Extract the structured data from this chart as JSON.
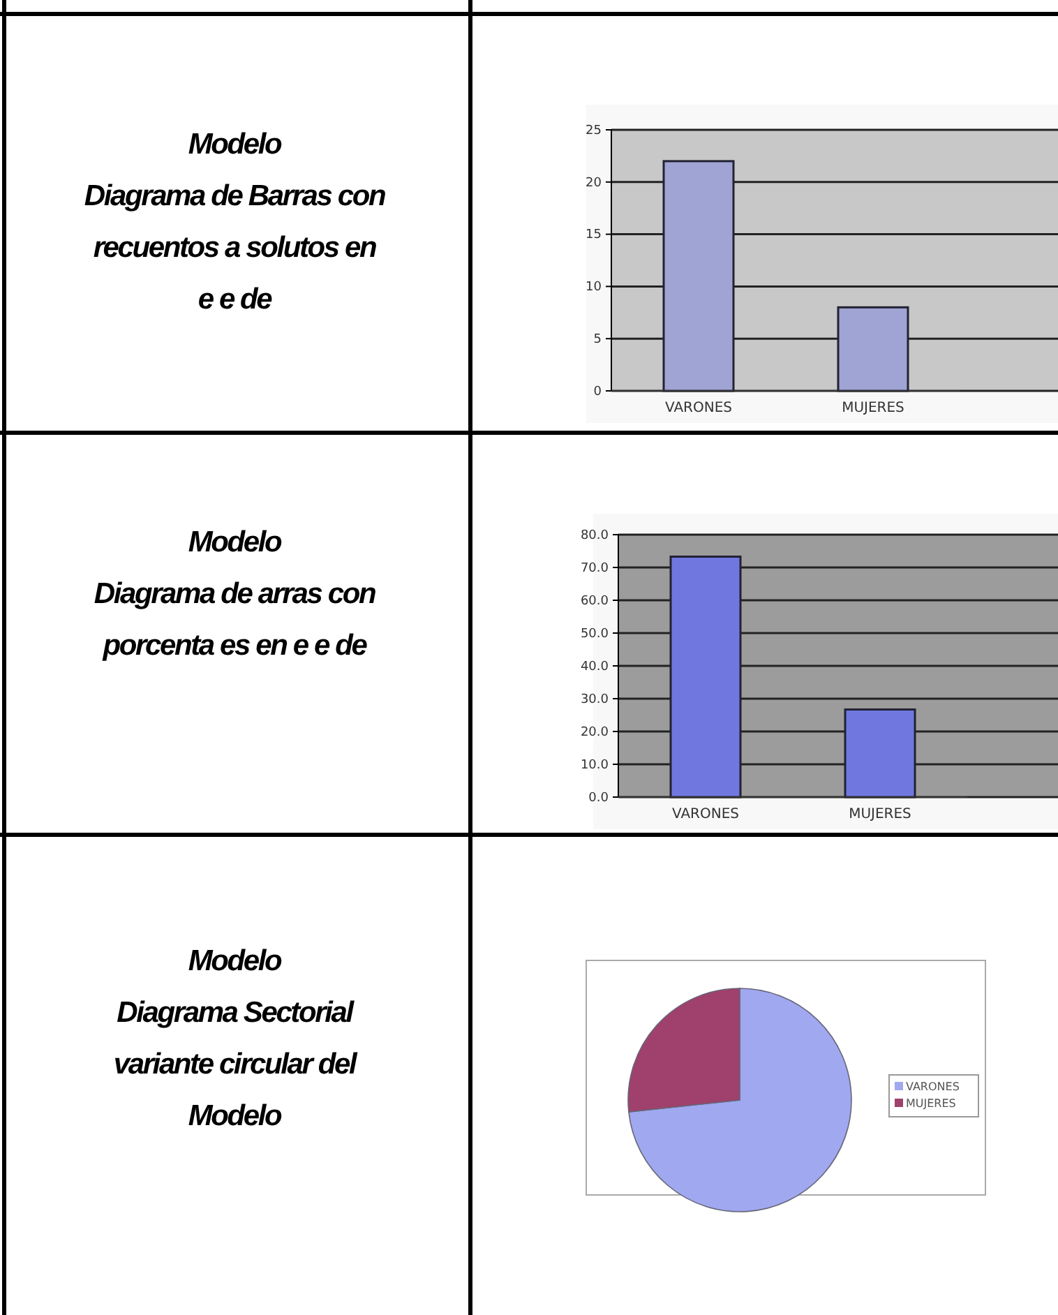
{
  "chart_data": [
    {
      "type": "other",
      "annotations": [
        "Modelo",
        "Diagrama de Barras con",
        "recuentos a  solutos en",
        "e e de"
      ]
    },
    {
      "type": "bar",
      "categories": [
        "VARONES",
        "MUJERES"
      ],
      "values": [
        22,
        8
      ],
      "color": "#a0a4d4",
      "ylim": [
        0,
        25
      ],
      "yticks": [
        0,
        5,
        10,
        15,
        20,
        25
      ],
      "grid": "y"
    },
    {
      "type": "other",
      "annotations": [
        "Modelo",
        "Diagrama de   arras con",
        "porcenta es en e e de"
      ]
    },
    {
      "type": "bar",
      "categories": [
        "VARONES",
        "MUJERES"
      ],
      "values": [
        73.3,
        26.7
      ],
      "color": "#7078e0",
      "ylim": [
        0,
        80
      ],
      "yticks": [
        {
          "value": 0,
          "label": "0.0"
        },
        {
          "value": 10,
          "label": "10.0"
        },
        {
          "value": 20,
          "label": "20.0"
        },
        {
          "value": 30,
          "label": "30.0"
        },
        {
          "value": 40,
          "label": "40.0"
        },
        {
          "value": 50,
          "label": "50.0"
        },
        {
          "value": 60,
          "label": "60.0"
        },
        {
          "value": 70,
          "label": "70.0"
        },
        {
          "value": 80,
          "label": "80.0"
        }
      ],
      "grid": "y"
    },
    {
      "type": "other",
      "annotations": [
        "Modelo",
        "Diagrama Sectorial",
        "variante circular del",
        "Modelo"
      ]
    },
    {
      "type": "pie",
      "categories": [
        "VARONES",
        "MUJERES"
      ],
      "values": [
        73.3,
        26.7
      ],
      "colors": [
        "#a0a8f0",
        "#a0406c"
      ],
      "legend": "right"
    }
  ]
}
